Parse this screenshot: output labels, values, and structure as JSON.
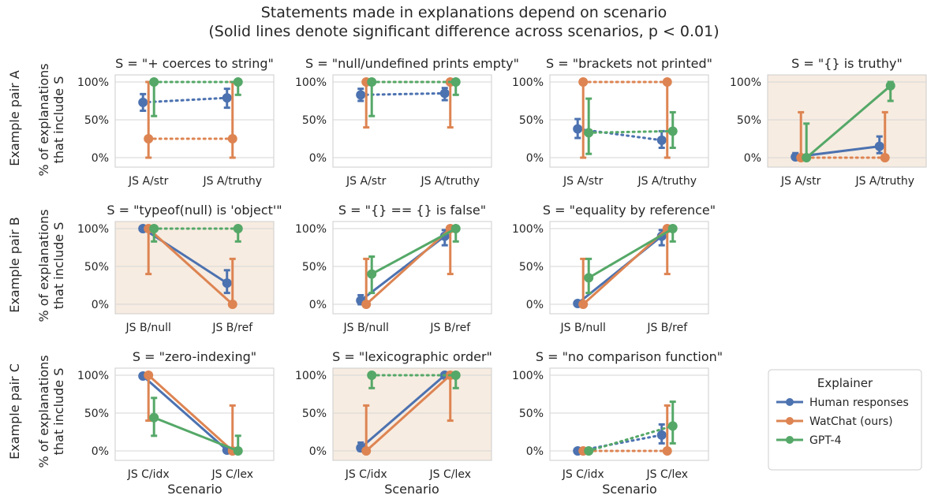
{
  "figure": {
    "title": "Statements made in explanations depend on scenario",
    "subtitle": "(Solid lines denote significant difference across scenarios, p < 0.01)",
    "row_labels": [
      "Example pair A",
      "Example pair B",
      "Example pair C"
    ],
    "ylabel_line1": "% of explanations",
    "ylabel_line2": "that include S",
    "xlabel": "Scenario",
    "yticks": [
      "0%",
      "50%",
      "100%"
    ],
    "highlight_color": "#f7ece1",
    "colors": {
      "human": "#4c72b0",
      "watchat": "#dd8452",
      "gpt4": "#55a868"
    }
  },
  "legend": {
    "title": "Explainer",
    "items": [
      {
        "key": "human",
        "label": "Human responses"
      },
      {
        "key": "watchat",
        "label": "WatChat (ours)"
      },
      {
        "key": "gpt4",
        "label": "GPT-4"
      }
    ]
  },
  "chart_data": [
    {
      "type": "line",
      "row": 0,
      "col": 0,
      "title": "S = \"+ coerces to string\"",
      "highlight": false,
      "categories": [
        "JS A/str",
        "JS A/truthy"
      ],
      "ylim": [
        0,
        100
      ],
      "series": [
        {
          "name": "Human responses",
          "values": [
            73,
            79
          ],
          "err_low": [
            62,
            66
          ],
          "err_high": [
            84,
            91
          ],
          "significant": false
        },
        {
          "name": "WatChat (ours)",
          "values": [
            25,
            25
          ],
          "err_low": [
            0,
            0
          ],
          "err_high": [
            100,
            100
          ],
          "significant": false
        },
        {
          "name": "GPT-4",
          "values": [
            100,
            100
          ],
          "err_low": [
            55,
            83
          ],
          "err_high": [
            100,
            100
          ],
          "significant": false
        }
      ]
    },
    {
      "type": "line",
      "row": 0,
      "col": 1,
      "title": "S = \"null/undefined prints empty\"",
      "highlight": false,
      "categories": [
        "JS A/str",
        "JS A/truthy"
      ],
      "ylim": [
        0,
        100
      ],
      "series": [
        {
          "name": "Human responses",
          "values": [
            83,
            85
          ],
          "err_low": [
            75,
            76
          ],
          "err_high": [
            91,
            92
          ],
          "significant": false
        },
        {
          "name": "WatChat (ours)",
          "values": [
            100,
            100
          ],
          "err_low": [
            40,
            40
          ],
          "err_high": [
            100,
            100
          ],
          "significant": false
        },
        {
          "name": "GPT-4",
          "values": [
            100,
            100
          ],
          "err_low": [
            55,
            83
          ],
          "err_high": [
            100,
            100
          ],
          "significant": false
        }
      ]
    },
    {
      "type": "line",
      "row": 0,
      "col": 2,
      "title": "S = \"brackets not printed\"",
      "highlight": false,
      "categories": [
        "JS A/str",
        "JS A/truthy"
      ],
      "ylim": [
        0,
        100
      ],
      "series": [
        {
          "name": "Human responses",
          "values": [
            38,
            23
          ],
          "err_low": [
            26,
            13
          ],
          "err_high": [
            51,
            35
          ],
          "significant": false
        },
        {
          "name": "WatChat (ours)",
          "values": [
            100,
            100
          ],
          "err_low": [
            0,
            0
          ],
          "err_high": [
            100,
            100
          ],
          "significant": false
        },
        {
          "name": "GPT-4",
          "values": [
            33,
            35
          ],
          "err_low": [
            5,
            13
          ],
          "err_high": [
            78,
            60
          ],
          "significant": false
        }
      ]
    },
    {
      "type": "line",
      "row": 0,
      "col": 3,
      "title": "S = \"{} is truthy\"",
      "highlight": true,
      "categories": [
        "JS A/str",
        "JS A/truthy"
      ],
      "ylim": [
        0,
        100
      ],
      "series": [
        {
          "name": "Human responses",
          "values": [
            1,
            15
          ],
          "err_low": [
            0,
            6
          ],
          "err_high": [
            6,
            28
          ],
          "significant": true
        },
        {
          "name": "WatChat (ours)",
          "values": [
            0,
            0
          ],
          "err_low": [
            0,
            0
          ],
          "err_high": [
            60,
            60
          ],
          "significant": false
        },
        {
          "name": "GPT-4",
          "values": [
            0,
            95
          ],
          "err_low": [
            0,
            75
          ],
          "err_high": [
            45,
            100
          ],
          "significant": true
        }
      ]
    },
    {
      "type": "line",
      "row": 1,
      "col": 0,
      "title": "S = \"typeof(null) is 'object'\"",
      "highlight": true,
      "categories": [
        "JS B/null",
        "JS B/ref"
      ],
      "ylim": [
        0,
        100
      ],
      "series": [
        {
          "name": "Human responses",
          "values": [
            100,
            28
          ],
          "err_low": [
            99,
            15
          ],
          "err_high": [
            100,
            45
          ],
          "significant": true
        },
        {
          "name": "WatChat (ours)",
          "values": [
            100,
            0
          ],
          "err_low": [
            40,
            0
          ],
          "err_high": [
            100,
            60
          ],
          "significant": true
        },
        {
          "name": "GPT-4",
          "values": [
            100,
            100
          ],
          "err_low": [
            83,
            83
          ],
          "err_high": [
            100,
            100
          ],
          "significant": false
        }
      ]
    },
    {
      "type": "line",
      "row": 1,
      "col": 1,
      "title": "S = \"{} == {} is false\"",
      "highlight": false,
      "categories": [
        "JS B/null",
        "JS B/ref"
      ],
      "ylim": [
        0,
        100
      ],
      "series": [
        {
          "name": "Human responses",
          "values": [
            5,
            90
          ],
          "err_low": [
            0,
            78
          ],
          "err_high": [
            12,
            98
          ],
          "significant": true
        },
        {
          "name": "WatChat (ours)",
          "values": [
            0,
            100
          ],
          "err_low": [
            0,
            40
          ],
          "err_high": [
            60,
            100
          ],
          "significant": true
        },
        {
          "name": "GPT-4",
          "values": [
            40,
            100
          ],
          "err_low": [
            15,
            83
          ],
          "err_high": [
            63,
            100
          ],
          "significant": true
        }
      ]
    },
    {
      "type": "line",
      "row": 1,
      "col": 2,
      "title": "S = \"equality by reference\"",
      "highlight": false,
      "categories": [
        "JS B/null",
        "JS B/ref"
      ],
      "ylim": [
        0,
        100
      ],
      "series": [
        {
          "name": "Human responses",
          "values": [
            1,
            90
          ],
          "err_low": [
            0,
            78
          ],
          "err_high": [
            4,
            98
          ],
          "significant": true
        },
        {
          "name": "WatChat (ours)",
          "values": [
            0,
            100
          ],
          "err_low": [
            0,
            40
          ],
          "err_high": [
            60,
            100
          ],
          "significant": true
        },
        {
          "name": "GPT-4",
          "values": [
            35,
            100
          ],
          "err_low": [
            15,
            83
          ],
          "err_high": [
            60,
            100
          ],
          "significant": true
        }
      ]
    },
    {
      "type": "line",
      "row": 2,
      "col": 0,
      "title": "S = \"zero-indexing\"",
      "highlight": false,
      "categories": [
        "JS C/idx",
        "JS C/lex"
      ],
      "ylim": [
        0,
        100
      ],
      "series": [
        {
          "name": "Human responses",
          "values": [
            99,
            1
          ],
          "err_low": [
            96,
            0
          ],
          "err_high": [
            100,
            4
          ],
          "significant": true
        },
        {
          "name": "WatChat (ours)",
          "values": [
            100,
            0
          ],
          "err_low": [
            40,
            0
          ],
          "err_high": [
            100,
            60
          ],
          "significant": true
        },
        {
          "name": "GPT-4",
          "values": [
            44,
            0
          ],
          "err_low": [
            20,
            0
          ],
          "err_high": [
            70,
            20
          ],
          "significant": true
        }
      ]
    },
    {
      "type": "line",
      "row": 2,
      "col": 1,
      "title": "S = \"lexicographic order\"",
      "highlight": true,
      "categories": [
        "JS C/idx",
        "JS C/lex"
      ],
      "ylim": [
        0,
        100
      ],
      "series": [
        {
          "name": "Human responses",
          "values": [
            4,
            100
          ],
          "err_low": [
            0,
            99
          ],
          "err_high": [
            11,
            100
          ],
          "significant": true
        },
        {
          "name": "WatChat (ours)",
          "values": [
            0,
            100
          ],
          "err_low": [
            0,
            40
          ],
          "err_high": [
            60,
            100
          ],
          "significant": true
        },
        {
          "name": "GPT-4",
          "values": [
            100,
            100
          ],
          "err_low": [
            83,
            83
          ],
          "err_high": [
            100,
            100
          ],
          "significant": false
        }
      ]
    },
    {
      "type": "line",
      "row": 2,
      "col": 2,
      "title": "S = \"no comparison function\"",
      "highlight": false,
      "categories": [
        "JS C/idx",
        "JS C/lex"
      ],
      "ylim": [
        0,
        100
      ],
      "series": [
        {
          "name": "Human responses",
          "values": [
            0,
            21
          ],
          "err_low": [
            0,
            10
          ],
          "err_high": [
            2,
            35
          ],
          "significant": false
        },
        {
          "name": "WatChat (ours)",
          "values": [
            0,
            0
          ],
          "err_low": [
            0,
            0
          ],
          "err_high": [
            0,
            60
          ],
          "significant": false
        },
        {
          "name": "GPT-4",
          "values": [
            0,
            33
          ],
          "err_low": [
            0,
            10
          ],
          "err_high": [
            0,
            65
          ],
          "significant": false
        }
      ]
    }
  ]
}
